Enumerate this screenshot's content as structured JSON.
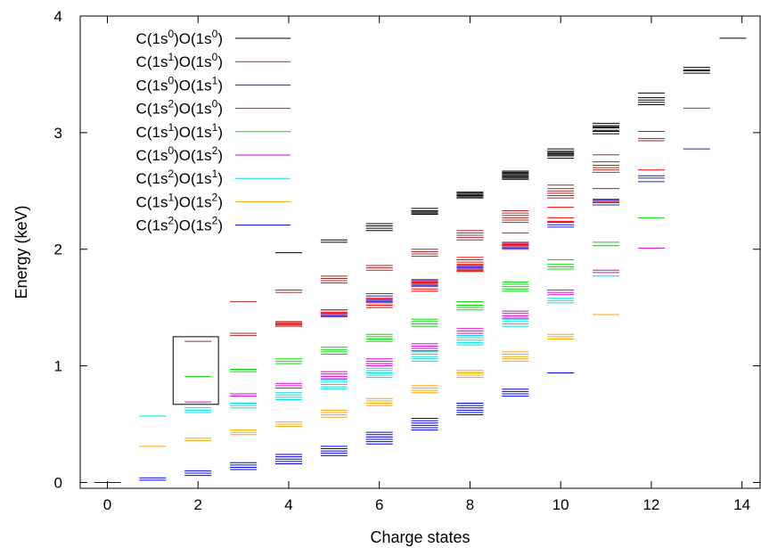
{
  "chart_data": {
    "type": "scatter",
    "mark": "horizontal energy-level segments per charge state",
    "xlabel": "Charge states",
    "ylabel": "Energy (keV)",
    "xlim": [
      -0.6,
      14.4
    ],
    "ylim": [
      -0.05,
      4.0
    ],
    "xticks": [
      "0",
      "2",
      "4",
      "6",
      "8",
      "10",
      "12",
      "14"
    ],
    "yticks": [
      "0",
      "1",
      "2",
      "3",
      "4"
    ],
    "legend_position": "top-left",
    "highlight_box": {
      "x_range": [
        1.45,
        2.45
      ],
      "y_range": [
        0.67,
        1.25
      ]
    },
    "series": [
      {
        "name": "C(1s0)O(1s0)",
        "color": "#000000",
        "levels": [
          {
            "x": 13.8,
            "y": [
              3.81
            ]
          },
          {
            "x": 13.0,
            "y": [
              3.51,
              3.53,
              3.54,
              3.56
            ]
          },
          {
            "x": 12.0,
            "y": [
              3.24,
              3.26,
              3.28,
              3.3,
              3.34
            ]
          },
          {
            "x": 11.0,
            "y": [
              2.99,
              3.01,
              3.02,
              3.04,
              3.05,
              3.06,
              3.08
            ]
          },
          {
            "x": 10.0,
            "y": [
              2.78,
              2.8,
              2.81,
              2.82,
              2.83,
              2.84,
              2.86
            ]
          },
          {
            "x": 9.0,
            "y": [
              2.6,
              2.61,
              2.62,
              2.63,
              2.64,
              2.65,
              2.66,
              2.67
            ]
          },
          {
            "x": 8.0,
            "y": [
              2.44,
              2.45,
              2.46,
              2.47,
              2.48,
              2.49
            ]
          },
          {
            "x": 7.0,
            "y": [
              2.3,
              2.31,
              2.32,
              2.33,
              2.35
            ]
          },
          {
            "x": 6.0,
            "y": [
              2.16,
              2.18,
              2.2,
              2.22
            ]
          },
          {
            "x": 5.0,
            "y": [
              2.06,
              2.08
            ]
          },
          {
            "x": 4.0,
            "y": [
              1.97
            ]
          }
        ]
      },
      {
        "name": "C(1s1)O(1s0)",
        "color": "#a52a2a",
        "levels": [
          {
            "x": 13.0,
            "y": [
              3.21
            ]
          },
          {
            "x": 12.0,
            "y": [
              2.93,
              2.95,
              3.01
            ]
          },
          {
            "x": 11.0,
            "y": [
              2.66,
              2.68,
              2.7,
              2.72,
              2.75,
              2.81
            ]
          },
          {
            "x": 10.0,
            "y": [
              2.44,
              2.46,
              2.48,
              2.5,
              2.52,
              2.55
            ]
          },
          {
            "x": 9.0,
            "y": [
              2.23,
              2.25,
              2.27,
              2.29,
              2.31,
              2.33
            ]
          },
          {
            "x": 8.0,
            "y": [
              2.08,
              2.1,
              2.12,
              2.14,
              2.16
            ]
          },
          {
            "x": 7.0,
            "y": [
              1.94,
              1.96,
              1.98,
              2.0
            ]
          },
          {
            "x": 6.0,
            "y": [
              1.82,
              1.84,
              1.86
            ]
          },
          {
            "x": 5.0,
            "y": [
              1.71,
              1.73,
              1.75,
              1.77
            ]
          },
          {
            "x": 4.0,
            "y": [
              1.63,
              1.65
            ]
          },
          {
            "x": 4.0,
            "y": [
              1.34,
              1.36,
              1.38
            ]
          },
          {
            "x": 3.0,
            "y": [
              1.26,
              1.28
            ]
          },
          {
            "x": 3.0,
            "y": [
              1.55
            ]
          },
          {
            "x": 2.0,
            "y": [
              1.21
            ]
          }
        ]
      },
      {
        "name": "C(1s0)O(1s1)",
        "color": "#1f1fcf",
        "levels": [
          {
            "x": 13.0,
            "y": [
              2.86
            ]
          },
          {
            "x": 12.0,
            "y": [
              2.58,
              2.61,
              2.63
            ]
          },
          {
            "x": 11.0,
            "y": [
              2.38,
              2.4,
              2.42
            ]
          },
          {
            "x": 10.0,
            "y": [
              2.19,
              2.21,
              2.23
            ]
          },
          {
            "x": 9.0,
            "y": [
              2.01,
              2.03,
              2.05
            ]
          },
          {
            "x": 8.0,
            "y": [
              1.82,
              1.84,
              1.86
            ]
          },
          {
            "x": 7.0,
            "y": [
              1.69,
              1.71,
              1.73
            ]
          },
          {
            "x": 6.0,
            "y": [
              1.55,
              1.57,
              1.6
            ]
          },
          {
            "x": 5.0,
            "y": [
              1.43,
              1.45,
              1.48
            ]
          }
        ]
      },
      {
        "name": "C(1s2)O(1s0)",
        "color": "#ff0000",
        "levels": [
          {
            "x": 12.0,
            "y": [
              2.68
            ]
          },
          {
            "x": 11.0,
            "y": [
              2.41,
              2.43,
              2.52
            ]
          },
          {
            "x": 10.0,
            "y": [
              2.24,
              2.27,
              2.36
            ]
          },
          {
            "x": 9.0,
            "y": [
              2.0,
              2.02,
              2.04,
              2.06,
              2.14
            ]
          },
          {
            "x": 8.0,
            "y": [
              1.81,
              1.83,
              1.85,
              1.87,
              1.89,
              1.91,
              1.93
            ]
          },
          {
            "x": 7.0,
            "y": [
              1.64,
              1.66,
              1.68,
              1.7,
              1.72,
              1.74
            ]
          },
          {
            "x": 6.0,
            "y": [
              1.5,
              1.52,
              1.54,
              1.56,
              1.58,
              1.62
            ]
          },
          {
            "x": 5.0,
            "y": [
              1.42,
              1.44,
              1.46,
              1.48
            ]
          },
          {
            "x": 4.0,
            "y": [
              1.35,
              1.37
            ]
          }
        ]
      },
      {
        "name": "C(1s1)O(1s1)",
        "color": "#00dd00",
        "levels": [
          {
            "x": 12.0,
            "y": [
              2.27
            ]
          },
          {
            "x": 11.0,
            "y": [
              2.03,
              2.06
            ]
          },
          {
            "x": 10.0,
            "y": [
              1.83,
              1.85,
              1.87,
              1.91
            ]
          },
          {
            "x": 9.0,
            "y": [
              1.64,
              1.66,
              1.68,
              1.7,
              1.72
            ]
          },
          {
            "x": 8.0,
            "y": [
              1.48,
              1.5,
              1.52,
              1.55
            ]
          },
          {
            "x": 7.0,
            "y": [
              1.34,
              1.36,
              1.38,
              1.4
            ]
          },
          {
            "x": 6.0,
            "y": [
              1.21,
              1.23,
              1.25,
              1.27
            ]
          },
          {
            "x": 5.0,
            "y": [
              1.1,
              1.12,
              1.14,
              1.16
            ]
          },
          {
            "x": 4.0,
            "y": [
              1.02,
              1.04,
              1.06
            ]
          },
          {
            "x": 3.0,
            "y": [
              0.95,
              0.97
            ]
          },
          {
            "x": 2.0,
            "y": [
              0.91
            ]
          }
        ]
      },
      {
        "name": "C(1s0)O(1s2)",
        "color": "#dd00dd",
        "levels": [
          {
            "x": 12.0,
            "y": [
              2.01
            ]
          },
          {
            "x": 11.0,
            "y": [
              1.8,
              1.82
            ]
          },
          {
            "x": 10.0,
            "y": [
              1.61,
              1.63,
              1.65
            ]
          },
          {
            "x": 9.0,
            "y": [
              1.41,
              1.43,
              1.45,
              1.47
            ]
          },
          {
            "x": 8.0,
            "y": [
              1.26,
              1.28,
              1.3,
              1.32
            ]
          },
          {
            "x": 7.0,
            "y": [
              1.13,
              1.15,
              1.17,
              1.19
            ]
          },
          {
            "x": 6.0,
            "y": [
              1.0,
              1.02,
              1.04,
              1.06
            ]
          },
          {
            "x": 5.0,
            "y": [
              0.89,
              0.91,
              0.93,
              0.95
            ]
          },
          {
            "x": 4.0,
            "y": [
              0.81,
              0.83,
              0.85
            ]
          },
          {
            "x": 3.0,
            "y": [
              0.74,
              0.76
            ]
          },
          {
            "x": 2.0,
            "y": [
              0.69
            ]
          }
        ]
      },
      {
        "name": "C(1s2)O(1s1)",
        "color": "#00dddd",
        "levels": [
          {
            "x": 11.0,
            "y": [
              1.77
            ]
          },
          {
            "x": 10.0,
            "y": [
              1.54,
              1.56,
              1.58
            ]
          },
          {
            "x": 9.0,
            "y": [
              1.34,
              1.36,
              1.38,
              1.4
            ]
          },
          {
            "x": 8.0,
            "y": [
              1.18,
              1.2,
              1.22,
              1.24,
              1.26
            ]
          },
          {
            "x": 7.0,
            "y": [
              1.04,
              1.06,
              1.08,
              1.1,
              1.12
            ]
          },
          {
            "x": 6.0,
            "y": [
              0.9,
              0.92,
              0.94,
              0.96,
              0.98
            ]
          },
          {
            "x": 5.0,
            "y": [
              0.8,
              0.82,
              0.84,
              0.86,
              0.88
            ]
          },
          {
            "x": 4.0,
            "y": [
              0.71,
              0.73,
              0.75,
              0.77
            ]
          },
          {
            "x": 3.0,
            "y": [
              0.64,
              0.66,
              0.68
            ]
          },
          {
            "x": 2.0,
            "y": [
              0.6,
              0.62,
              0.64
            ]
          },
          {
            "x": 1.0,
            "y": [
              0.57
            ]
          }
        ]
      },
      {
        "name": "C(1s1)O(1s2)",
        "color": "#ffa500",
        "levels": [
          {
            "x": 11.0,
            "y": [
              1.44
            ]
          },
          {
            "x": 10.0,
            "y": [
              1.23,
              1.25,
              1.27
            ]
          },
          {
            "x": 9.0,
            "y": [
              1.04,
              1.06,
              1.08,
              1.1,
              1.12
            ]
          },
          {
            "x": 8.0,
            "y": [
              0.9,
              0.92,
              0.94,
              0.96
            ]
          },
          {
            "x": 7.0,
            "y": [
              0.77,
              0.79,
              0.81,
              0.83
            ]
          },
          {
            "x": 6.0,
            "y": [
              0.66,
              0.68,
              0.7,
              0.72
            ]
          },
          {
            "x": 5.0,
            "y": [
              0.56,
              0.58,
              0.6,
              0.62
            ]
          },
          {
            "x": 4.0,
            "y": [
              0.48,
              0.5,
              0.52
            ]
          },
          {
            "x": 3.0,
            "y": [
              0.41,
              0.43,
              0.45
            ]
          },
          {
            "x": 2.0,
            "y": [
              0.36,
              0.38
            ]
          },
          {
            "x": 1.0,
            "y": [
              0.31
            ]
          }
        ]
      },
      {
        "name": "C(1s2)O(1s2)",
        "color": "#0000ee",
        "levels": [
          {
            "x": 10.0,
            "y": [
              0.94
            ]
          },
          {
            "x": 9.0,
            "y": [
              0.74,
              0.76,
              0.78,
              0.8
            ]
          },
          {
            "x": 8.0,
            "y": [
              0.58,
              0.6,
              0.62,
              0.64,
              0.66,
              0.68
            ]
          },
          {
            "x": 7.0,
            "y": [
              0.45,
              0.47,
              0.49,
              0.51,
              0.53,
              0.55
            ]
          },
          {
            "x": 6.0,
            "y": [
              0.33,
              0.35,
              0.37,
              0.39,
              0.41,
              0.43
            ]
          },
          {
            "x": 5.0,
            "y": [
              0.23,
              0.25,
              0.27,
              0.29,
              0.31
            ]
          },
          {
            "x": 4.0,
            "y": [
              0.16,
              0.18,
              0.2,
              0.22,
              0.24
            ]
          },
          {
            "x": 3.0,
            "y": [
              0.11,
              0.13,
              0.15,
              0.17
            ]
          },
          {
            "x": 2.0,
            "y": [
              0.06,
              0.08,
              0.1
            ]
          },
          {
            "x": 1.0,
            "y": [
              0.02,
              0.04
            ]
          },
          {
            "x": 0.0,
            "y": [
              0.0
            ]
          }
        ]
      }
    ]
  }
}
